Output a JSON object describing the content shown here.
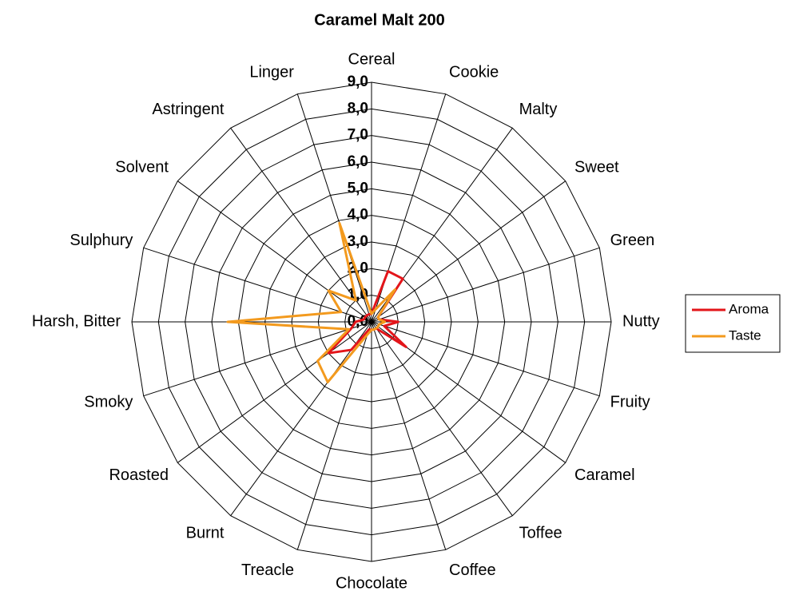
{
  "chart_data": {
    "type": "radar",
    "title": "Caramel Malt 200",
    "categories": [
      "Cereal",
      "Cookie",
      "Malty",
      "Sweet",
      "Green",
      "Nutty",
      "Fruity",
      "Caramel",
      "Toffee",
      "Coffee",
      "Chocolate",
      "Treacle",
      "Burnt",
      "Roasted",
      "Smoky",
      "Harsh, Bitter",
      "Sulphury",
      "Solvent",
      "Astringent",
      "Linger"
    ],
    "series": [
      {
        "name": "Aroma",
        "color": "#e3151a",
        "values": [
          0.3,
          2.0,
          2.0,
          0.3,
          0.3,
          1.0,
          0.5,
          1.6,
          0.3,
          0.3,
          0.3,
          0.3,
          1.3,
          2.0,
          0.8,
          0.6,
          0.3,
          0.3,
          0.3,
          0.3
        ]
      },
      {
        "name": "Taste",
        "color": "#f39a1e",
        "values": [
          0.3,
          0.5,
          1.5,
          0.3,
          0.3,
          0.5,
          0.3,
          0.3,
          0.3,
          0.3,
          0.3,
          0.5,
          2.8,
          2.5,
          0.9,
          5.4,
          1.2,
          2.0,
          1.0,
          3.9
        ]
      }
    ],
    "ylim": [
      0,
      9
    ],
    "yticks": [
      {
        "value": 0,
        "label": "0,0"
      },
      {
        "value": 1,
        "label": "1,0"
      },
      {
        "value": 2,
        "label": "2,0"
      },
      {
        "value": 3,
        "label": "3,0"
      },
      {
        "value": 4,
        "label": "4,0"
      },
      {
        "value": 5,
        "label": "5,0"
      },
      {
        "value": 6,
        "label": "6,0"
      },
      {
        "value": 7,
        "label": "7,0"
      },
      {
        "value": 8,
        "label": "8,0"
      },
      {
        "value": 9,
        "label": "9,0"
      }
    ],
    "grid": true,
    "legend": "right"
  }
}
